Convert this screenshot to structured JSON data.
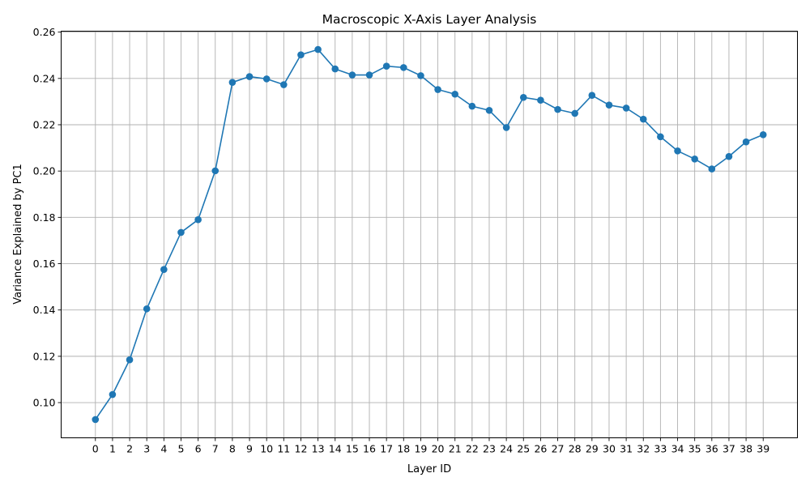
{
  "chart_data": {
    "type": "line",
    "title": "Macroscopic X-Axis Layer Analysis",
    "xlabel": "Layer ID",
    "ylabel": "Variance Explained by PC1",
    "x": [
      0,
      1,
      2,
      3,
      4,
      5,
      6,
      7,
      8,
      9,
      10,
      11,
      12,
      13,
      14,
      15,
      16,
      17,
      18,
      19,
      20,
      21,
      22,
      23,
      24,
      25,
      26,
      27,
      28,
      29,
      30,
      31,
      32,
      33,
      34,
      35,
      36,
      37,
      38,
      39
    ],
    "x_tick_labels": [
      "0",
      "1",
      "2",
      "3",
      "4",
      "5",
      "6",
      "7",
      "8",
      "9",
      "10",
      "11",
      "12",
      "13",
      "14",
      "15",
      "16",
      "17",
      "18",
      "19",
      "20",
      "21",
      "22",
      "23",
      "24",
      "25",
      "26",
      "27",
      "28",
      "29",
      "30",
      "31",
      "32",
      "33",
      "34",
      "35",
      "36",
      "37",
      "38",
      "39"
    ],
    "series": [
      {
        "values": [
          0.0927,
          0.1035,
          0.1185,
          0.1405,
          0.1575,
          0.1735,
          0.179,
          0.2001,
          0.2383,
          0.2408,
          0.2398,
          0.2373,
          0.2502,
          0.2525,
          0.2441,
          0.2415,
          0.2415,
          0.2453,
          0.2447,
          0.2412,
          0.2352,
          0.2332,
          0.228,
          0.2262,
          0.2188,
          0.2318,
          0.2306,
          0.2266,
          0.2249,
          0.2327,
          0.2285,
          0.2272,
          0.2224,
          0.2148,
          0.2087,
          0.2052,
          0.2009,
          0.2063,
          0.2126,
          0.2157
        ]
      }
    ],
    "y_ticks": [
      0.1,
      0.12,
      0.14,
      0.16,
      0.18,
      0.2,
      0.22,
      0.24,
      0.26
    ],
    "y_tick_labels": [
      "0.10",
      "0.12",
      "0.14",
      "0.16",
      "0.18",
      "0.20",
      "0.22",
      "0.24",
      "0.26"
    ],
    "ylim": [
      0.0848,
      0.2604
    ],
    "xlim": [
      -2.0,
      41.0
    ],
    "grid": true,
    "line_color": "#1f77b4",
    "marker_color": "#1f77b4"
  }
}
